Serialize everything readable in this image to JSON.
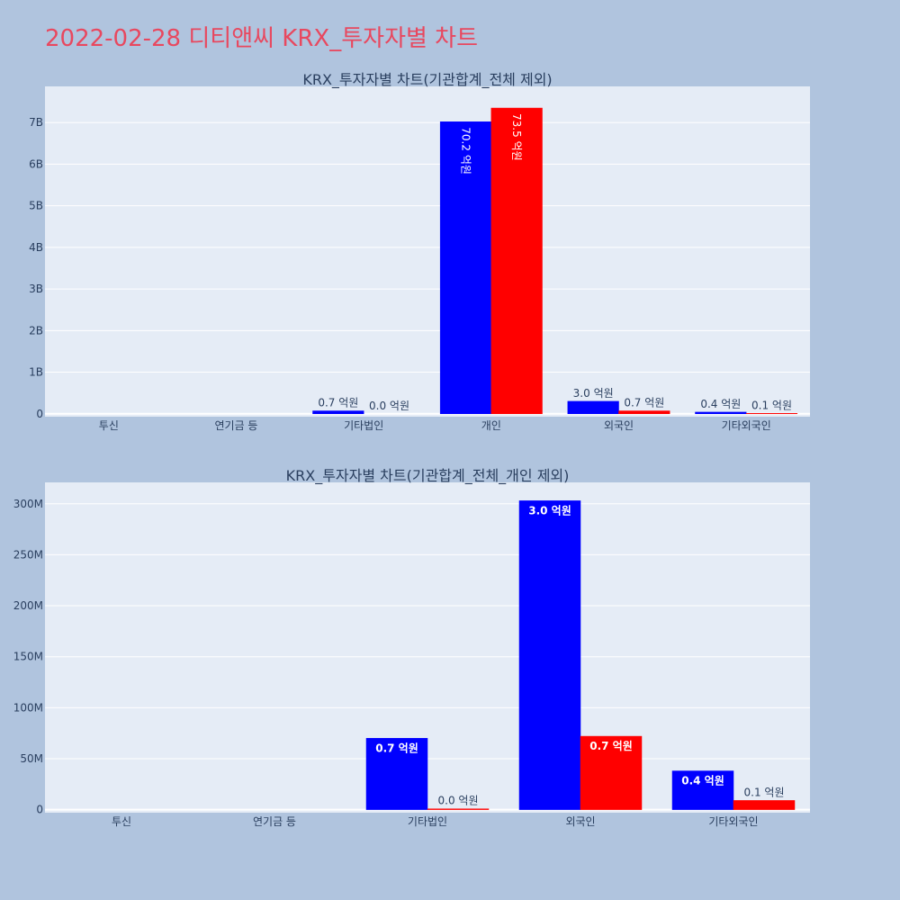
{
  "page": {
    "title": "2022-02-28 디티앤씨 KRX_투자자별 차트"
  },
  "colors": {
    "background": "#b0c4de",
    "plot_background": "#e5ecf6",
    "title": "#e8485f",
    "buy": "#0000ff",
    "sell": "#ff0000",
    "text": "#2a3f5f"
  },
  "chart_data": [
    {
      "type": "bar",
      "title": "KRX_투자자별 차트(기관합계_전체 제외)",
      "categories": [
        "투신",
        "연기금 등",
        "기타법인",
        "개인",
        "외국인",
        "기타외국인"
      ],
      "series": [
        {
          "color": "#0000ff",
          "values": [
            0,
            0,
            70000000,
            7020000000,
            300000000,
            40000000
          ],
          "labels": [
            "",
            "",
            "0.7 억원",
            "70.2 억원",
            "3.0 억원",
            "0.4 억원"
          ]
        },
        {
          "color": "#ff0000",
          "values": [
            0,
            0,
            0,
            7350000000,
            70000000,
            10000000
          ],
          "labels": [
            "",
            "",
            "0.0 억원",
            "73.5 억원",
            "0.7 억원",
            "0.1 억원"
          ]
        }
      ],
      "yticks": [
        {
          "value": 0,
          "label": "0"
        },
        {
          "value": 1000000000,
          "label": "1B"
        },
        {
          "value": 2000000000,
          "label": "2B"
        },
        {
          "value": 3000000000,
          "label": "3B"
        },
        {
          "value": 4000000000,
          "label": "4B"
        },
        {
          "value": 5000000000,
          "label": "5B"
        },
        {
          "value": 6000000000,
          "label": "6B"
        },
        {
          "value": 7000000000,
          "label": "7B"
        }
      ],
      "ylim": [
        -70000000,
        7870000000
      ],
      "grid": true,
      "legend": "none"
    },
    {
      "type": "bar",
      "title": "KRX_투자자별 차트(기관합계_전체_개인 제외)",
      "categories": [
        "투신",
        "연기금 등",
        "기타법인",
        "외국인",
        "기타외국인"
      ],
      "series": [
        {
          "color": "#0000ff",
          "values": [
            0,
            0,
            70000000,
            303000000,
            38000000
          ],
          "labels": [
            "",
            "",
            "0.7 억원",
            "3.0 억원",
            "0.4 억원"
          ]
        },
        {
          "color": "#ff0000",
          "values": [
            0,
            0,
            800000,
            72000000,
            9000000
          ],
          "labels": [
            "",
            "",
            "0.0 억원",
            "0.7 억원",
            "0.1 억원"
          ]
        }
      ],
      "yticks": [
        {
          "value": 0,
          "label": "0"
        },
        {
          "value": 50000000,
          "label": "50M"
        },
        {
          "value": 100000000,
          "label": "100M"
        },
        {
          "value": 150000000,
          "label": "150M"
        },
        {
          "value": 200000000,
          "label": "200M"
        },
        {
          "value": 250000000,
          "label": "250M"
        },
        {
          "value": 300000000,
          "label": "300M"
        }
      ],
      "ylim": [
        -3000000,
        321000000
      ],
      "grid": true,
      "legend": "none"
    }
  ]
}
